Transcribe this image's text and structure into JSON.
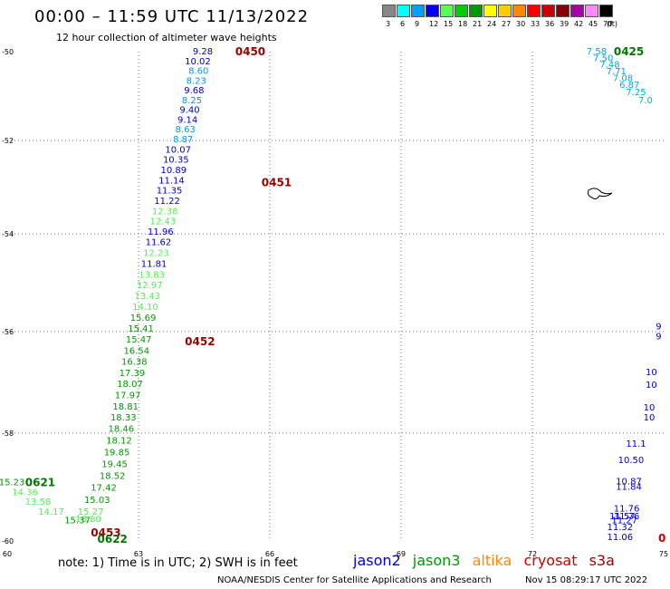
{
  "header": {
    "title": "00:00 – 11:59 UTC 11/13/2022",
    "subtitle": "12 hour collection of altimeter wave heights"
  },
  "legend": {
    "unit": "(ft)",
    "bins": [
      {
        "label": "3",
        "color": "#888888"
      },
      {
        "label": "6",
        "color": "#00ffff"
      },
      {
        "label": "9",
        "color": "#00a0ff"
      },
      {
        "label": "12",
        "color": "#0000ff"
      },
      {
        "label": "15",
        "color": "#55ff55"
      },
      {
        "label": "18",
        "color": "#00cc00"
      },
      {
        "label": "21",
        "color": "#009900"
      },
      {
        "label": "24",
        "color": "#ffff00"
      },
      {
        "label": "27",
        "color": "#ffcc00"
      },
      {
        "label": "30",
        "color": "#ff8800"
      },
      {
        "label": "33",
        "color": "#ff0000"
      },
      {
        "label": "36",
        "color": "#cc0000"
      },
      {
        "label": "39",
        "color": "#880000"
      },
      {
        "label": "42",
        "color": "#aa00aa"
      },
      {
        "label": "45",
        "color": "#ff88ff"
      },
      {
        "label": "70",
        "color": "#000000"
      }
    ]
  },
  "axes": {
    "lon_labels": [
      "60",
      "63",
      "66",
      "69",
      "72",
      "75"
    ],
    "lat_labels": [
      "-50",
      "-52",
      "-54",
      "-56",
      "-58",
      "-60"
    ]
  },
  "observations": [
    {
      "text": "9.28",
      "lon": 64.7,
      "lat": -50.0,
      "color": "#0000cc"
    },
    {
      "text": "10.02",
      "lon": 64.65,
      "lat": -50.22,
      "color": "#0000cc"
    },
    {
      "text": "8.60",
      "lon": 64.6,
      "lat": -50.44,
      "color": "#0099ee"
    },
    {
      "text": "8.23",
      "lon": 64.55,
      "lat": -50.66,
      "color": "#0099ee"
    },
    {
      "text": "9.68",
      "lon": 64.5,
      "lat": -50.88,
      "color": "#0000cc"
    },
    {
      "text": "8.25",
      "lon": 64.45,
      "lat": -51.1,
      "color": "#0099ee"
    },
    {
      "text": "9.40",
      "lon": 64.4,
      "lat": -51.32,
      "color": "#0000cc"
    },
    {
      "text": "9.14",
      "lon": 64.35,
      "lat": -51.54,
      "color": "#0000cc"
    },
    {
      "text": "8.63",
      "lon": 64.3,
      "lat": -51.76,
      "color": "#0099ee"
    },
    {
      "text": "8.87",
      "lon": 64.25,
      "lat": -51.98,
      "color": "#0099ee"
    },
    {
      "text": "10.07",
      "lon": 64.2,
      "lat": -52.2,
      "color": "#0000cc"
    },
    {
      "text": "10.35",
      "lon": 64.15,
      "lat": -52.42,
      "color": "#0000cc"
    },
    {
      "text": "10.89",
      "lon": 64.1,
      "lat": -52.64,
      "color": "#0000cc"
    },
    {
      "text": "11.14",
      "lon": 64.05,
      "lat": -52.86,
      "color": "#0000cc"
    },
    {
      "text": "11.35",
      "lon": 64.0,
      "lat": -53.08,
      "color": "#0000cc"
    },
    {
      "text": "11.22",
      "lon": 63.95,
      "lat": -53.3,
      "color": "#0000cc"
    },
    {
      "text": "12.38",
      "lon": 63.9,
      "lat": -53.52,
      "color": "#55ee55"
    },
    {
      "text": "12.43",
      "lon": 63.85,
      "lat": -53.74,
      "color": "#55ee55"
    },
    {
      "text": "11.96",
      "lon": 63.8,
      "lat": -53.96,
      "color": "#0000cc"
    },
    {
      "text": "11.62",
      "lon": 63.75,
      "lat": -54.18,
      "color": "#0000cc"
    },
    {
      "text": "12.23",
      "lon": 63.7,
      "lat": -54.4,
      "color": "#55ee55"
    },
    {
      "text": "11.81",
      "lon": 63.65,
      "lat": -54.62,
      "color": "#0000cc"
    },
    {
      "text": "13.83",
      "lon": 63.6,
      "lat": -54.84,
      "color": "#55ee55"
    },
    {
      "text": "12.97",
      "lon": 63.55,
      "lat": -55.06,
      "color": "#55ee55"
    },
    {
      "text": "13.43",
      "lon": 63.5,
      "lat": -55.28,
      "color": "#55ee55"
    },
    {
      "text": "14.10",
      "lon": 63.45,
      "lat": -55.5,
      "color": "#55ee55"
    },
    {
      "text": "15.69",
      "lon": 63.4,
      "lat": -55.72,
      "color": "#009900"
    },
    {
      "text": "15.41",
      "lon": 63.35,
      "lat": -55.94,
      "color": "#009900"
    },
    {
      "text": "15.47",
      "lon": 63.3,
      "lat": -56.16,
      "color": "#009900"
    },
    {
      "text": "16.54",
      "lon": 63.25,
      "lat": -56.38,
      "color": "#009900"
    },
    {
      "text": "16.38",
      "lon": 63.2,
      "lat": -56.6,
      "color": "#009900"
    },
    {
      "text": "17.39",
      "lon": 63.15,
      "lat": -56.82,
      "color": "#009900"
    },
    {
      "text": "18.07",
      "lon": 63.1,
      "lat": -57.04,
      "color": "#009900"
    },
    {
      "text": "17.97",
      "lon": 63.05,
      "lat": -57.26,
      "color": "#009900"
    },
    {
      "text": "18.81",
      "lon": 63.0,
      "lat": -57.48,
      "color": "#009900"
    },
    {
      "text": "18.33",
      "lon": 62.95,
      "lat": -57.7,
      "color": "#009900"
    },
    {
      "text": "18.46",
      "lon": 62.9,
      "lat": -57.92,
      "color": "#009900"
    },
    {
      "text": "18.12",
      "lon": 62.85,
      "lat": -58.14,
      "color": "#009900"
    },
    {
      "text": "19.85",
      "lon": 62.8,
      "lat": -58.36,
      "color": "#009900"
    },
    {
      "text": "19.45",
      "lon": 62.75,
      "lat": -58.58,
      "color": "#009900"
    },
    {
      "text": "18.52",
      "lon": 62.7,
      "lat": -58.8,
      "color": "#009900"
    },
    {
      "text": "17.42",
      "lon": 62.5,
      "lat": -59.02,
      "color": "#009900"
    },
    {
      "text": "15.03",
      "lon": 62.35,
      "lat": -59.24,
      "color": "#009900"
    },
    {
      "text": "15.27",
      "lon": 62.2,
      "lat": -59.46,
      "color": "#55ee55"
    },
    {
      "text": "16.80",
      "lon": 62.15,
      "lat": -59.6,
      "color": "#55ee55"
    },
    {
      "text": "15.23",
      "lon": 60.4,
      "lat": -58.92,
      "color": "#009900"
    },
    {
      "text": "14.36",
      "lon": 60.7,
      "lat": -59.1,
      "color": "#55ee55"
    },
    {
      "text": "13.58",
      "lon": 61.0,
      "lat": -59.28,
      "color": "#55ee55"
    },
    {
      "text": "14.17",
      "lon": 61.3,
      "lat": -59.46,
      "color": "#55ee55"
    },
    {
      "text": "15.37",
      "lon": 61.9,
      "lat": -59.62,
      "color": "#009900"
    },
    {
      "text": "7.58",
      "lon": 73.7,
      "lat": -50.0,
      "color": "#00aadd"
    },
    {
      "text": "7.50",
      "lon": 73.85,
      "lat": -50.15,
      "color": "#00aadd"
    },
    {
      "text": "7.48",
      "lon": 74.0,
      "lat": -50.3,
      "color": "#00aadd"
    },
    {
      "text": "7.71",
      "lon": 74.15,
      "lat": -50.45,
      "color": "#00aadd"
    },
    {
      "text": "7.08",
      "lon": 74.3,
      "lat": -50.6,
      "color": "#00aadd"
    },
    {
      "text": "6.87",
      "lon": 74.45,
      "lat": -50.75,
      "color": "#00aadd"
    },
    {
      "text": "7.25",
      "lon": 74.6,
      "lat": -50.92,
      "color": "#00aadd"
    },
    {
      "text": "7.0",
      "lon": 74.75,
      "lat": -51.1,
      "color": "#00aadd"
    },
    {
      "text": "9",
      "lon": 74.95,
      "lat": -55.9,
      "color": "#0000cc"
    },
    {
      "text": "9",
      "lon": 74.95,
      "lat": -56.1,
      "color": "#0000cc"
    },
    {
      "text": "10",
      "lon": 74.85,
      "lat": -56.8,
      "color": "#0000cc"
    },
    {
      "text": "10",
      "lon": 74.85,
      "lat": -57.05,
      "color": "#0000cc"
    },
    {
      "text": "10",
      "lon": 74.8,
      "lat": -57.5,
      "color": "#0000cc"
    },
    {
      "text": "10",
      "lon": 74.8,
      "lat": -57.7,
      "color": "#0000cc"
    },
    {
      "text": "11.1",
      "lon": 74.6,
      "lat": -58.2,
      "color": "#0000cc"
    },
    {
      "text": "10.50",
      "lon": 74.55,
      "lat": -58.5,
      "color": "#0000cc"
    },
    {
      "text": "10.87",
      "lon": 74.5,
      "lat": -58.9,
      "color": "#0000cc"
    },
    {
      "text": "11.84",
      "lon": 74.5,
      "lat": -59.0,
      "color": "#0000cc"
    },
    {
      "text": "11.76",
      "lon": 74.45,
      "lat": -59.4,
      "color": "#0000cc"
    },
    {
      "text": "11.76",
      "lon": 74.45,
      "lat": -59.55,
      "color": "#0000cc"
    },
    {
      "text": "11.27",
      "lon": 74.4,
      "lat": -59.62,
      "color": "#0000cc"
    },
    {
      "text": "11.57",
      "lon": 74.35,
      "lat": -59.55,
      "color": "#0000cc"
    },
    {
      "text": "11.32",
      "lon": 74.3,
      "lat": -59.75,
      "color": "#0000cc"
    },
    {
      "text": "11.06",
      "lon": 74.3,
      "lat": -59.93,
      "color": "#0000cc"
    }
  ],
  "pass_labels": [
    {
      "text": "0450",
      "lon": 65.9,
      "lat": -50.0,
      "color": "#990000"
    },
    {
      "text": "0451",
      "lon": 66.5,
      "lat": -52.9,
      "color": "#990000"
    },
    {
      "text": "0452",
      "lon": 64.75,
      "lat": -56.2,
      "color": "#990000"
    },
    {
      "text": "0453",
      "lon": 62.6,
      "lat": -59.85,
      "color": "#990000"
    },
    {
      "text": "0621",
      "lon": 61.1,
      "lat": -58.92,
      "color": "#007700"
    },
    {
      "text": "0622",
      "lon": 62.75,
      "lat": -59.97,
      "color": "#007700"
    },
    {
      "text": "0425",
      "lon": 74.55,
      "lat": -50.0,
      "color": "#007700"
    },
    {
      "text": "0",
      "lon": 75.05,
      "lat": -59.95,
      "color": "#cc0000"
    }
  ],
  "footer": {
    "note": "note:  1) Time is in UTC;  2) SWH is in feet",
    "satellites": [
      {
        "name": "jason2",
        "color": "#0000cc"
      },
      {
        "name": "jason3",
        "color": "#009900"
      },
      {
        "name": "altika",
        "color": "#ff8800"
      },
      {
        "name": "cryosat",
        "color": "#cc0000"
      },
      {
        "name": "s3a",
        "color": "#990000"
      }
    ],
    "credit": "NOAA/NESDIS Center for Satellite Applications and Research",
    "generated": "Nov 15 08:29:17 UTC 2022"
  }
}
